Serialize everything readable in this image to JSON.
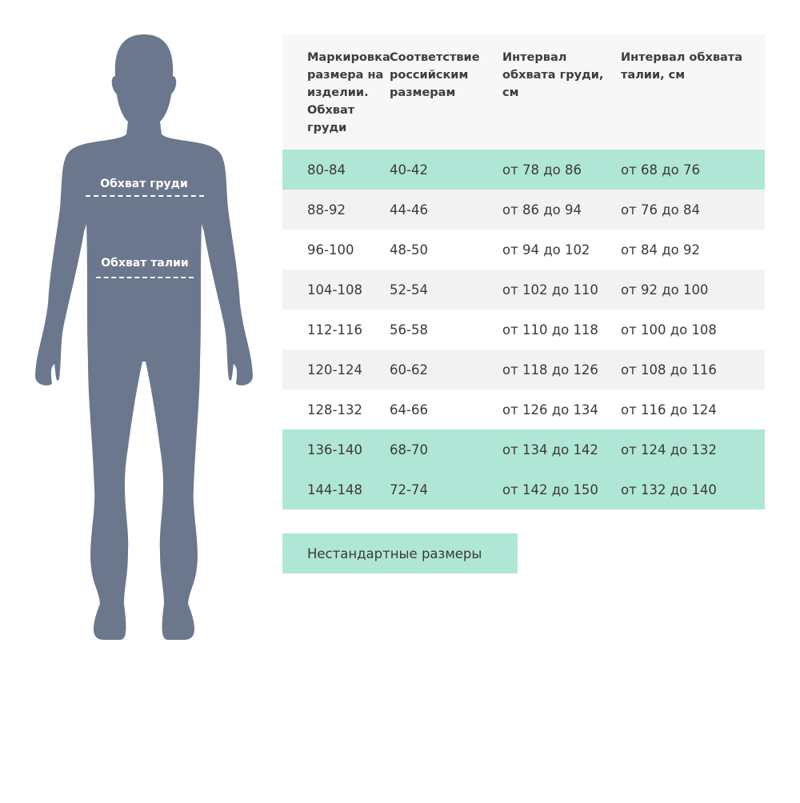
{
  "colors": {
    "silhouette": "#6b778d",
    "highlight": "#b0e6d6",
    "stripe": "#f2f2f2",
    "header_bg": "#f7f7f7"
  },
  "figure": {
    "chest_label": "Обхват груди",
    "waist_label": "Обхват талии"
  },
  "table": {
    "headers": [
      "Маркировка размера на изделии. Обхват груди",
      "Соответствие российским размерам",
      "Интервал обхвата груди, см",
      "Интервал обхвата талии, см"
    ],
    "rows": [
      {
        "style": "mint",
        "cells": [
          "80-84",
          "40-42",
          "от 78 до 86",
          "от 68 до 76"
        ]
      },
      {
        "style": "grey",
        "cells": [
          "88-92",
          "44-46",
          "от 86 до 94",
          "от 76 до 84"
        ]
      },
      {
        "style": "white",
        "cells": [
          "96-100",
          "48-50",
          "от 94 до 102",
          "от 84 до 92"
        ]
      },
      {
        "style": "grey",
        "cells": [
          "104-108",
          "52-54",
          "от 102 до 110",
          "от 92 до 100"
        ]
      },
      {
        "style": "white",
        "cells": [
          "112-116",
          "56-58",
          "от 110 до 118",
          "от 100 до 108"
        ]
      },
      {
        "style": "grey",
        "cells": [
          "120-124",
          "60-62",
          "от 118 до 126",
          "от 108 до 116"
        ]
      },
      {
        "style": "white",
        "cells": [
          "128-132",
          "64-66",
          "от 126 до 134",
          "от 116 до 124"
        ]
      },
      {
        "style": "mint",
        "cells": [
          "136-140",
          "68-70",
          "от 134 до 142",
          "от 124 до 132"
        ]
      },
      {
        "style": "mint",
        "cells": [
          "144-148",
          "72-74",
          "от 142 до 150",
          "от 132 до 140"
        ]
      }
    ]
  },
  "nonstandard_button": "Нестандартные размеры"
}
